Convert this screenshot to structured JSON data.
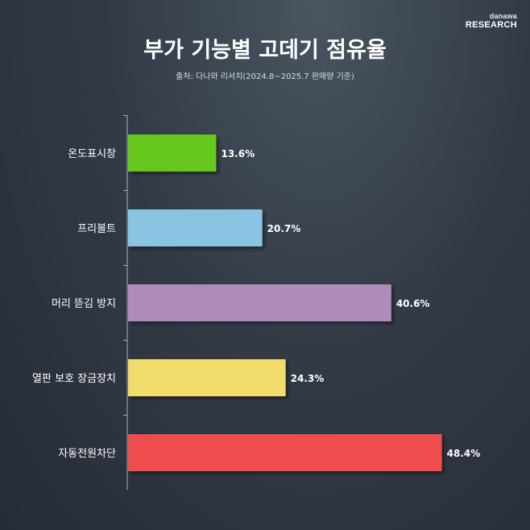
{
  "brand": {
    "top": "danawa",
    "bottom": "RESEARCH"
  },
  "chart_data": {
    "type": "bar",
    "orientation": "horizontal",
    "title": "부가 기능별 고데기 점유율",
    "subtitle": "출처: 다나와 리서치(2024.8~2025.7 판매량 기준)",
    "categories": [
      "온도표시창",
      "프리볼트",
      "머리 뜯김 방지",
      "열판 보호 장금장치",
      "자동전원차단"
    ],
    "values": [
      13.6,
      20.7,
      40.6,
      24.3,
      48.4
    ],
    "value_labels": [
      "13.6%",
      "20.7%",
      "40.6%",
      "24.3%",
      "48.4%"
    ],
    "colors": [
      "#66c81e",
      "#8ac4e2",
      "#ae8bb8",
      "#f2dc6c",
      "#ef4e4e"
    ],
    "xlim": [
      0,
      50
    ],
    "grid": false,
    "legend": "none"
  }
}
